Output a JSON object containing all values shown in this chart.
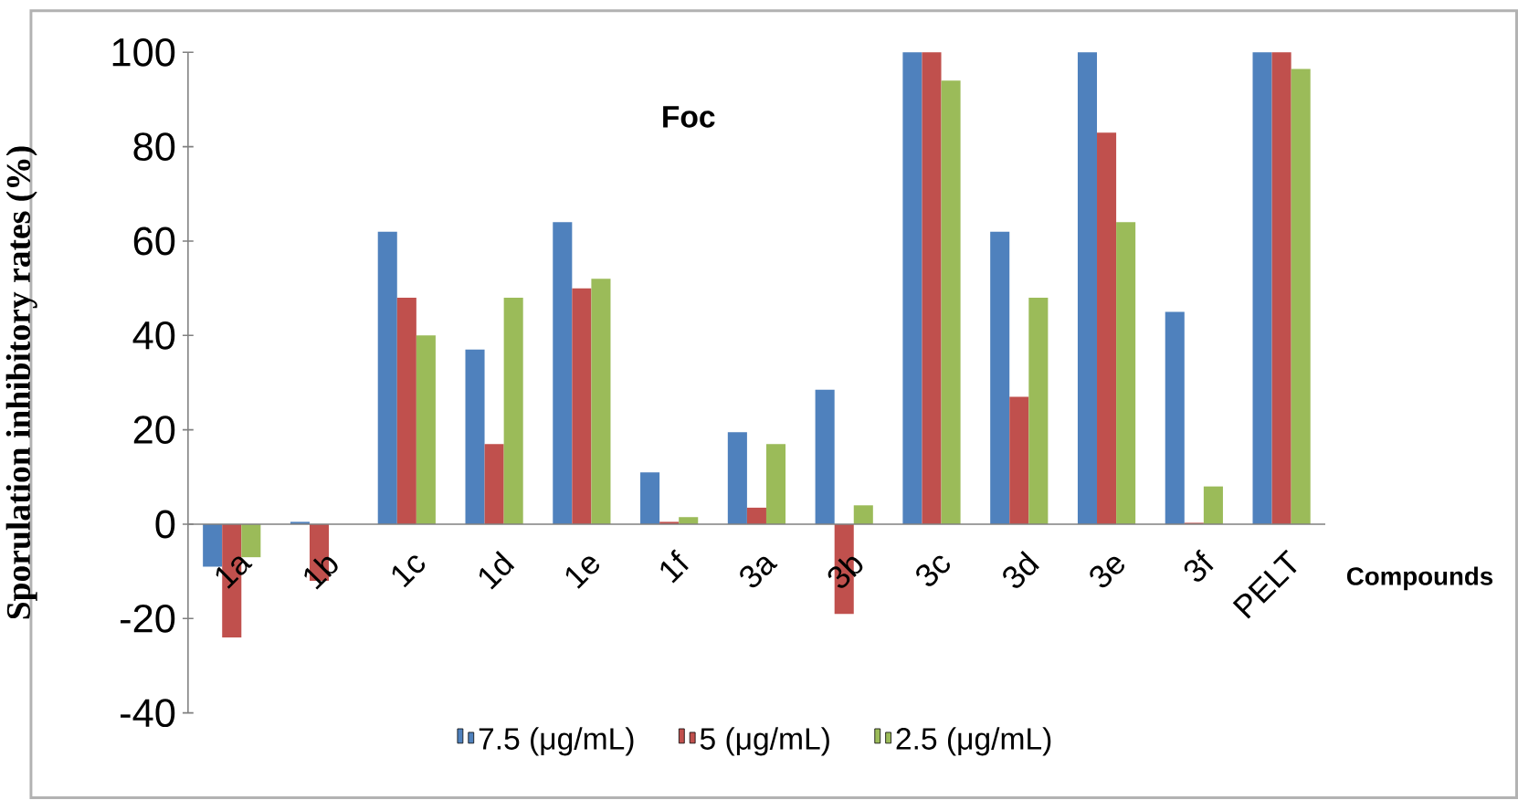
{
  "chart_data": {
    "type": "bar",
    "title": "Foc",
    "xlabel": "Compounds",
    "ylabel": "Sporulation inhibitory rates (%)",
    "categories": [
      "1a",
      "1b",
      "1c",
      "1d",
      "1e",
      "1f",
      "3a",
      "3b",
      "3c",
      "3d",
      "3e",
      "3f",
      "PELT"
    ],
    "series": [
      {
        "name": "7.5 (μg/mL)",
        "color": "#4f81bd",
        "values": [
          -9,
          0.5,
          62,
          37,
          64,
          11,
          19.5,
          28.5,
          100,
          62,
          100,
          45,
          100
        ]
      },
      {
        "name": "5 (μg/mL)",
        "color": "#c0504d",
        "values": [
          -24,
          -12,
          48,
          17,
          50,
          0.5,
          3.5,
          -19,
          100,
          27,
          83,
          0.3,
          100
        ]
      },
      {
        "name": "2.5 (μg/mL)",
        "color": "#9bbb59",
        "values": [
          -7,
          0,
          40,
          48,
          52,
          1.5,
          17,
          4,
          94,
          48,
          64,
          8,
          96.5
        ]
      }
    ],
    "ylim": [
      -40,
      100
    ],
    "yticks": [
      -40,
      -20,
      0,
      20,
      40,
      60,
      80,
      100
    ],
    "grid": false,
    "legend": "bottom"
  }
}
